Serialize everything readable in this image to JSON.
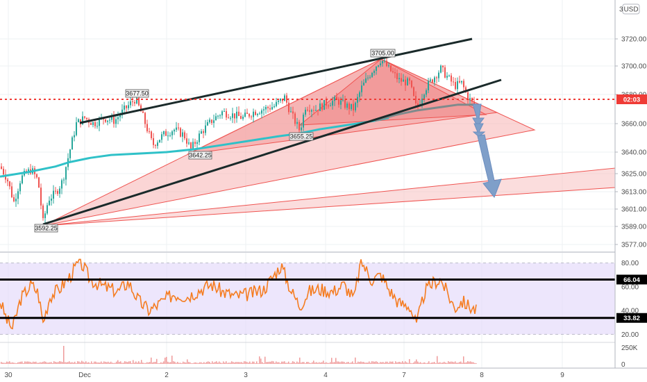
{
  "chart_data": [
    {
      "type": "candlestick",
      "title": "",
      "currency_label": "USD",
      "price_axis": {
        "ticks": [
          3720.0,
          3700.0,
          3680.0,
          3660.0,
          3640.0,
          3625.0,
          3613.0,
          3601.0,
          3589.0,
          3577.0
        ],
        "top_label": "3"
      },
      "x_axis": {
        "ticks": [
          "30",
          "Dec",
          "2",
          "3",
          "4",
          "7",
          "8",
          "9"
        ]
      },
      "current_price_label": "02:03",
      "current_price": 3676,
      "annotations": [
        {
          "label": "3677.50",
          "kind": "high"
        },
        {
          "label": "3705.00",
          "kind": "high"
        },
        {
          "label": "3642.25",
          "kind": "low"
        },
        {
          "label": "3655.25",
          "kind": "low"
        },
        {
          "label": "3592.25",
          "kind": "low"
        }
      ],
      "drawings": {
        "moving_average_color": "#2fc1c8",
        "moving_average_2_color": "#7f8a8c",
        "trendline_color": "#1a2a2a",
        "fan_color": "#ef5350",
        "arrow_color": "#7f9fc9",
        "bull_candle": "#26a69a",
        "bear_candle": "#ef5350"
      }
    },
    {
      "type": "line",
      "title": "",
      "indicator_axis_ticks": [
        "80.00",
        "60.00",
        "40.00",
        "20.00"
      ],
      "level_labels": [
        "66.04",
        "33.82"
      ],
      "ylim": [
        15,
        85
      ],
      "line_color": "#f57c20",
      "band_color": "#e6dcfb"
    },
    {
      "type": "bar",
      "title": "",
      "volume_axis_ticks": [
        "250K",
        "0"
      ],
      "bar_color": "#ef9a9a"
    }
  ]
}
